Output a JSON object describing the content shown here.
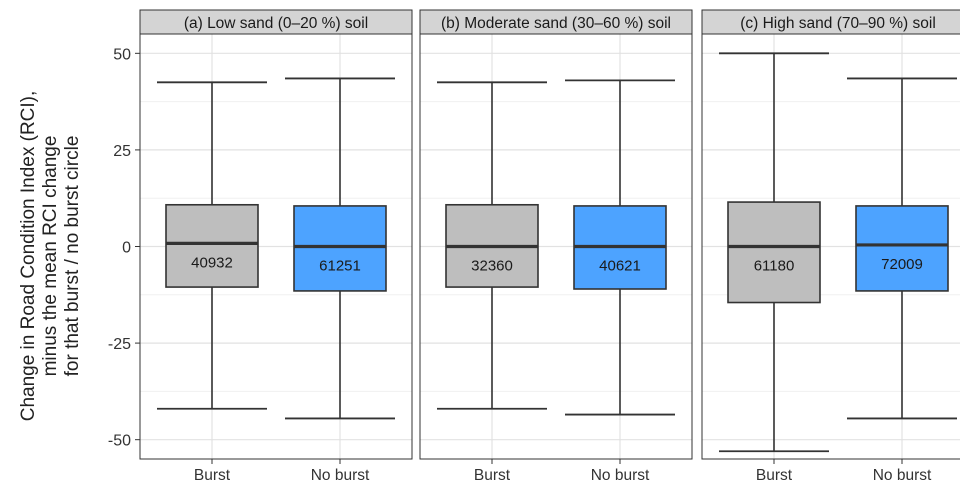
{
  "chart_data": {
    "type": "boxplot",
    "ylabel_lines": [
      "Change in Road Condition Index (RCI),",
      "minus the mean RCI change",
      "for that burst / no burst circle"
    ],
    "ylim": [
      -55,
      55
    ],
    "yticks": [
      50,
      25,
      0,
      -25,
      -50
    ],
    "ytick_labels": [
      "50",
      "25",
      "0",
      "-25",
      "-50"
    ],
    "categories": [
      "Burst",
      "No burst"
    ],
    "colors": {
      "Burst": "#bebebe",
      "No burst": "#4da3ff"
    },
    "grid": true,
    "panels": [
      {
        "title": "(a)   Low sand (0–20 %) soil",
        "boxes": [
          {
            "category": "Burst",
            "whisker_low": -42,
            "q1": -10.5,
            "median": 0.8,
            "q3": 10.8,
            "whisker_high": 42.5,
            "count_label": "40932"
          },
          {
            "category": "No burst",
            "whisker_low": -44.5,
            "q1": -11.5,
            "median": 0,
            "q3": 10.5,
            "whisker_high": 43.5,
            "count_label": "61251"
          }
        ]
      },
      {
        "title": "(b)   Moderate sand (30–60 %) soil",
        "boxes": [
          {
            "category": "Burst",
            "whisker_low": -42,
            "q1": -10.5,
            "median": 0,
            "q3": 10.8,
            "whisker_high": 42.5,
            "count_label": "32360"
          },
          {
            "category": "No burst",
            "whisker_low": -43.5,
            "q1": -11,
            "median": 0,
            "q3": 10.5,
            "whisker_high": 43,
            "count_label": "40621"
          }
        ]
      },
      {
        "title": "(c)   High sand (70–90 %) soil",
        "boxes": [
          {
            "category": "Burst",
            "whisker_low": -53,
            "q1": -14.5,
            "median": 0,
            "q3": 11.5,
            "whisker_high": 50,
            "count_label": "61180"
          },
          {
            "category": "No burst",
            "whisker_low": -44.5,
            "q1": -11.5,
            "median": 0.4,
            "q3": 10.5,
            "whisker_high": 43.5,
            "count_label": "72009"
          }
        ]
      }
    ]
  }
}
